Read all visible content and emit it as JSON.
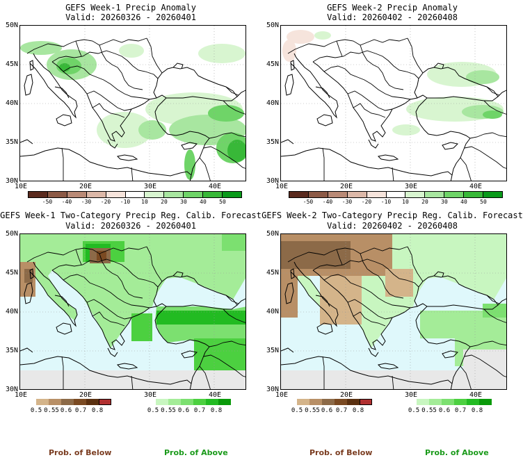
{
  "panels": [
    {
      "title": "GEFS Week-1 Precip Anomaly",
      "valid": "Valid: 20260326 - 20260401"
    },
    {
      "title": "GEFS Week-2 Precip Anomaly",
      "valid": "Valid: 20260402 - 20260408"
    },
    {
      "title": "GEFS Week-1 Two-Category Precip Reg. Calib. Forecast",
      "valid": "Valid: 20260326 - 20260401"
    },
    {
      "title": "GEFS Week-2 Two-Category Precip Reg. Calib. Forecast",
      "valid": "Valid: 20260402 - 20260408"
    }
  ],
  "lat_labels": [
    "50N",
    "45N",
    "40N",
    "35N",
    "30N"
  ],
  "lon_labels": [
    "10E",
    "20E",
    "30E",
    "40E"
  ],
  "anomaly_ticks": [
    "-50",
    "-40",
    "-30",
    "-20",
    "-10",
    "10",
    "20",
    "30",
    "40",
    "50"
  ],
  "anomaly_colors": [
    "#5a2a1e",
    "#8c5a46",
    "#b98a76",
    "#dcb8a8",
    "#f6e4dc",
    "#ffffff",
    "#d8f5d0",
    "#a8e6a0",
    "#6fd468",
    "#38b838",
    "#0a9a1a"
  ],
  "prob_ticks": [
    "0.5",
    "0.55",
    "0.6",
    "0.7",
    "0.8"
  ],
  "below_colors": [
    "#d4b48a",
    "#b88f66",
    "#8c6a48",
    "#7a4a22",
    "#5a3010",
    "#b03030"
  ],
  "above_colors": [
    "#c8f6c0",
    "#a4ec98",
    "#7ce070",
    "#4cd040",
    "#22bb22",
    "#0a9a0a"
  ],
  "captions": {
    "below": "Prob. of Below",
    "above": "Prob. of Above"
  },
  "caption_colors": {
    "below": "#7a3c20",
    "above": "#1a9a1a"
  }
}
